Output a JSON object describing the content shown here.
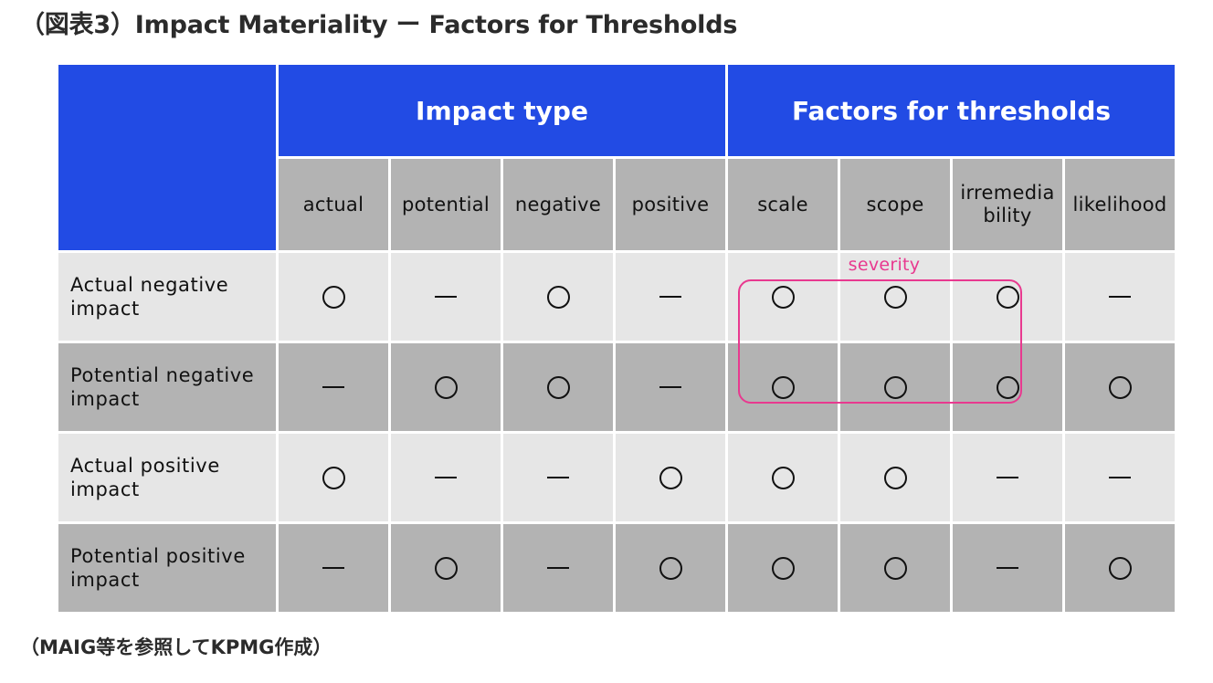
{
  "title": "（図表3）Impact Materiality ー Factors for Thresholds",
  "caption": "（MAIG等を参照してKPMG作成）",
  "header": {
    "group_impact_type": "Impact type",
    "group_factors": "Factors for thresholds",
    "columns": [
      "actual",
      "potential",
      "negative",
      "positive",
      "scale",
      "scope",
      "irremedia\nbility",
      "likelihood"
    ]
  },
  "severity_label": "severity",
  "rows": [
    {
      "label": "Actual negative impact",
      "marks": [
        "circle",
        "dash",
        "circle",
        "dash",
        "circle",
        "circle",
        "circle",
        "dash"
      ]
    },
    {
      "label": "Potential negative impact",
      "marks": [
        "dash",
        "circle",
        "circle",
        "dash",
        "circle",
        "circle",
        "circle",
        "circle"
      ]
    },
    {
      "label": "Actual positive impact",
      "marks": [
        "circle",
        "dash",
        "dash",
        "circle",
        "circle",
        "circle",
        "dash",
        "dash"
      ]
    },
    {
      "label": "Potential positive impact",
      "marks": [
        "dash",
        "circle",
        "dash",
        "circle",
        "circle",
        "circle",
        "dash",
        "circle"
      ]
    }
  ],
  "colors": {
    "header_blue": "#224be4",
    "highlight_pink": "#e8398f",
    "row_light": "#e6e6e6",
    "row_dark": "#b3b3b3"
  }
}
